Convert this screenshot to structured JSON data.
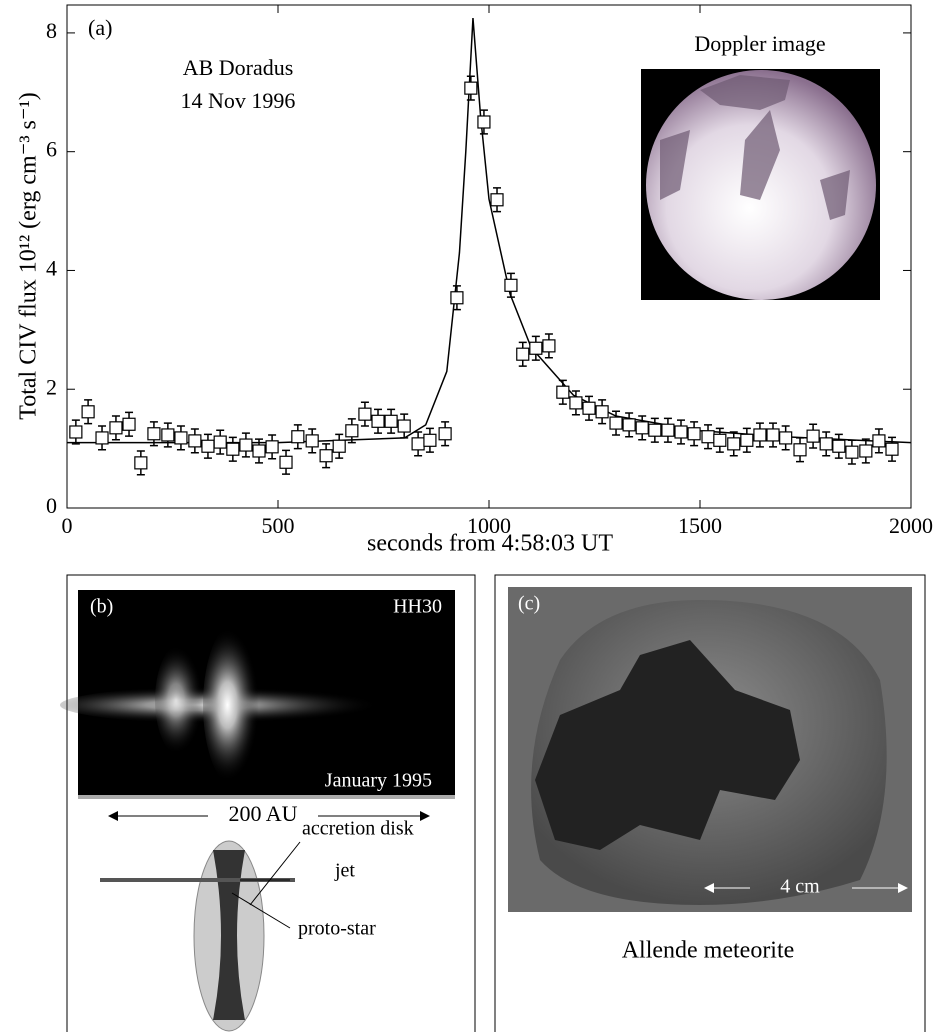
{
  "chart_data": {
    "type": "scatter",
    "panel_label": "(a)",
    "annotations": [
      "AB Doradus",
      "14 Nov 1996"
    ],
    "inset_title": "Doppler image",
    "x_label": "seconds from 4:58:03 UT",
    "y_label": "Total CIV flux 10¹² (erg cm⁻³ s⁻¹)",
    "xlim": [
      0,
      2000
    ],
    "xticks": [
      0,
      500,
      1000,
      1500,
      2000
    ],
    "ylim": [
      0,
      8.47
    ],
    "yticks": [
      0,
      2,
      4,
      6,
      8
    ],
    "color": "#000000",
    "x": [
      21,
      50,
      83,
      116,
      147,
      175,
      206,
      239,
      270,
      303,
      334,
      363,
      393,
      424,
      455,
      486,
      519,
      547,
      581,
      614,
      645,
      675,
      706,
      737,
      768,
      799,
      832,
      860,
      896,
      924,
      957,
      988,
      1019,
      1052,
      1080,
      1111,
      1142,
      1175,
      1206,
      1237,
      1268,
      1301,
      1332,
      1363,
      1393,
      1424,
      1455,
      1486,
      1519,
      1547,
      1580,
      1611,
      1642,
      1673,
      1703,
      1737,
      1768,
      1799,
      1829,
      1860,
      1893,
      1924,
      1955
    ],
    "values": [
      1.28,
      1.62,
      1.18,
      1.35,
      1.41,
      0.76,
      1.25,
      1.23,
      1.18,
      1.13,
      1.04,
      1.11,
      0.99,
      1.06,
      0.96,
      1.03,
      0.77,
      1.2,
      1.13,
      0.88,
      1.04,
      1.3,
      1.58,
      1.46,
      1.46,
      1.38,
      1.08,
      1.14,
      1.25,
      3.54,
      7.07,
      6.5,
      5.19,
      3.75,
      2.59,
      2.69,
      2.73,
      1.95,
      1.77,
      1.68,
      1.62,
      1.43,
      1.4,
      1.35,
      1.31,
      1.31,
      1.28,
      1.25,
      1.2,
      1.14,
      1.08,
      1.14,
      1.23,
      1.23,
      1.18,
      0.98,
      1.21,
      1.08,
      1.04,
      0.94,
      0.96,
      1.13,
      0.99
    ],
    "errors": [
      0.2,
      0.2,
      0.2,
      0.2,
      0.2,
      0.2,
      0.2,
      0.2,
      0.2,
      0.2,
      0.2,
      0.2,
      0.2,
      0.2,
      0.2,
      0.2,
      0.2,
      0.2,
      0.2,
      0.2,
      0.2,
      0.2,
      0.2,
      0.2,
      0.2,
      0.2,
      0.2,
      0.2,
      0.2,
      0.2,
      0.2,
      0.2,
      0.2,
      0.2,
      0.2,
      0.2,
      0.2,
      0.2,
      0.2,
      0.2,
      0.2,
      0.2,
      0.2,
      0.2,
      0.2,
      0.2,
      0.2,
      0.2,
      0.2,
      0.2,
      0.2,
      0.2,
      0.2,
      0.2,
      0.2,
      0.2,
      0.2,
      0.2,
      0.2,
      0.2,
      0.2,
      0.2,
      0.2
    ],
    "fit_x": [
      0,
      500,
      800,
      850,
      900,
      930,
      945,
      962,
      980,
      1000,
      1050,
      1100,
      1200,
      1300,
      1500,
      1700,
      2000
    ],
    "fit_values": [
      1.1,
      1.1,
      1.18,
      1.4,
      2.3,
      4.3,
      6.0,
      8.25,
      6.6,
      5.2,
      3.6,
      2.7,
      1.9,
      1.55,
      1.3,
      1.2,
      1.1
    ]
  },
  "panel_b": {
    "label": "(b)",
    "object": "HH30",
    "date": "January 1995",
    "scale": "200 AU",
    "callouts": [
      "accretion disk",
      "jet",
      "proto-star"
    ]
  },
  "panel_c": {
    "label": "(c)",
    "scale": "4 cm",
    "caption": "Allende meteorite"
  }
}
